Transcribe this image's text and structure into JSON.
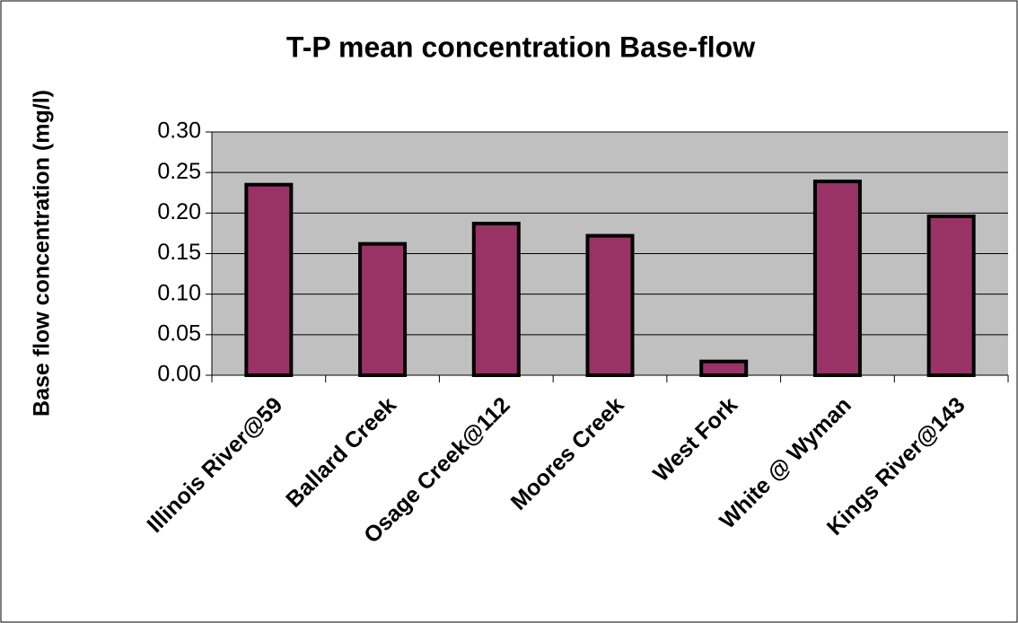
{
  "chart_data": {
    "type": "bar",
    "title": "T-P mean concentration Base-flow",
    "y_label": "Base flow concentration (mg/l)",
    "categories": [
      "Illinois River@59",
      "Ballard Creek",
      "Osage Creek@112",
      "Moores Creek",
      "West Fork",
      "White @ Wyman",
      "Kings River@143"
    ],
    "values": [
      0.235,
      0.162,
      0.187,
      0.172,
      0.017,
      0.239,
      0.196
    ],
    "color": "#993366",
    "ylim": [
      0,
      0.3
    ],
    "yticks": [
      {
        "value": 0,
        "label": "0.00"
      },
      {
        "value": 0.05,
        "label": "0.05"
      },
      {
        "value": 0.1,
        "label": "0.10"
      },
      {
        "value": 0.15,
        "label": "0.15"
      },
      {
        "value": 0.2,
        "label": "0.20"
      },
      {
        "value": 0.25,
        "label": "0.25"
      },
      {
        "value": 0.3,
        "label": "0.30"
      }
    ],
    "grid": true
  }
}
